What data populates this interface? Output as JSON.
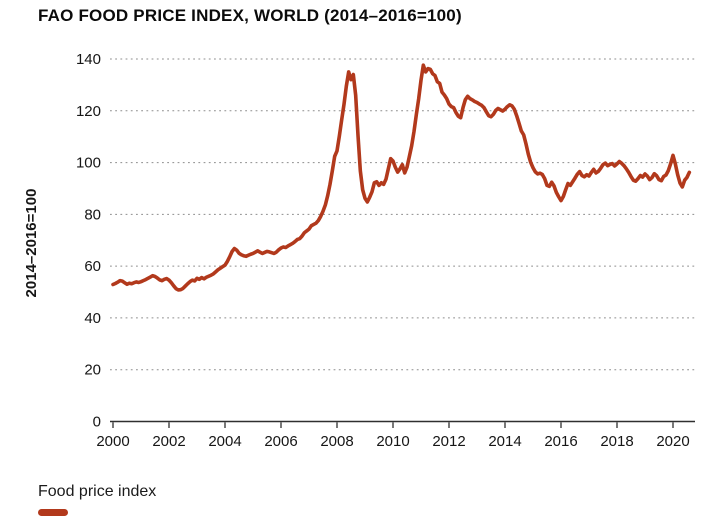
{
  "header": {
    "title": "FAO FOOD PRICE INDEX, WORLD (2014–2016=100)"
  },
  "legend": {
    "label": "Food price index"
  },
  "chart_data": {
    "type": "line",
    "title": "FAO FOOD PRICE INDEX, WORLD (2014–2016=100)",
    "xlabel": "",
    "ylabel": "2014–2016=100",
    "ylim": [
      0,
      140
    ],
    "xlim": [
      2000,
      2020.75
    ],
    "yticks": [
      0,
      20,
      40,
      60,
      80,
      100,
      120,
      140
    ],
    "xticks": [
      2000,
      2002,
      2004,
      2006,
      2008,
      2010,
      2012,
      2014,
      2016,
      2018,
      2020
    ],
    "grid": "horizontal-dotted",
    "legend_position": "bottom-left",
    "line_color": "#b2391c",
    "grid_color": "#8d8d8d",
    "axis_color": "#2f2f2f",
    "text_color": "#161616",
    "series": [
      {
        "name": "Food price index",
        "color": "#b2391c",
        "x_start_year": 2000,
        "x_step_months": 1,
        "values": [
          52.9,
          53.3,
          53.8,
          54.4,
          54.2,
          53.6,
          53.0,
          53.4,
          53.2,
          53.6,
          53.9,
          53.7,
          54.0,
          54.4,
          54.8,
          55.3,
          55.8,
          56.3,
          56.0,
          55.4,
          54.7,
          54.4,
          54.9,
          55.2,
          54.6,
          53.6,
          52.4,
          51.3,
          50.8,
          50.9,
          51.4,
          52.3,
          53.2,
          54.0,
          54.6,
          54.3,
          55.3,
          54.9,
          55.6,
          55.1,
          55.7,
          56.1,
          56.5,
          57.0,
          57.8,
          58.6,
          59.2,
          59.8,
          60.4,
          61.8,
          63.6,
          65.6,
          66.8,
          66.2,
          65.0,
          64.4,
          64.0,
          63.8,
          64.2,
          64.6,
          64.9,
          65.4,
          65.9,
          65.4,
          64.9,
          65.3,
          65.7,
          65.5,
          65.2,
          64.9,
          65.4,
          66.3,
          67.0,
          67.4,
          67.2,
          67.8,
          68.3,
          68.8,
          69.5,
          70.3,
          70.6,
          71.6,
          72.9,
          73.6,
          74.3,
          75.6,
          76.1,
          76.6,
          77.6,
          79.2,
          81.2,
          83.6,
          87.2,
          91.6,
          96.8,
          102.4,
          104.5,
          110.2,
          116.5,
          122.5,
          129.5,
          135.0,
          132.0,
          134.0,
          126.0,
          110.5,
          96.8,
          89.5,
          86.2,
          84.8,
          86.6,
          88.7,
          92.2,
          92.6,
          91.2,
          92.2,
          91.6,
          93.6,
          97.6,
          101.5,
          100.6,
          98.2,
          96.3,
          97.6,
          99.2,
          96.0,
          98.2,
          102.3,
          106.5,
          112.0,
          118.5,
          124.6,
          131.8,
          137.6,
          135.0,
          136.3,
          136.0,
          134.3,
          133.6,
          131.2,
          130.6,
          127.2,
          126.1,
          124.7,
          122.6,
          121.6,
          121.2,
          119.3,
          117.9,
          117.3,
          121.2,
          124.3,
          125.6,
          124.7,
          124.2,
          123.6,
          123.2,
          122.6,
          122.1,
          121.2,
          119.6,
          118.1,
          117.7,
          118.6,
          120.1,
          120.9,
          120.4,
          119.9,
          120.6,
          121.6,
          122.3,
          121.9,
          120.6,
          118.1,
          115.2,
          112.2,
          110.7,
          107.2,
          103.2,
          100.1,
          98.0,
          96.4,
          95.6,
          95.9,
          95.4,
          93.8,
          91.2,
          90.8,
          92.4,
          91.0,
          88.5,
          86.8,
          85.3,
          86.9,
          89.5,
          91.9,
          91.2,
          92.6,
          94.0,
          95.5,
          96.5,
          95.0,
          94.5,
          95.3,
          94.8,
          96.2,
          97.4,
          96.0,
          96.6,
          97.8,
          99.2,
          99.8,
          98.8,
          99.3,
          99.6,
          98.7,
          99.5,
          100.4,
          99.7,
          98.8,
          97.6,
          96.2,
          94.6,
          93.2,
          92.8,
          93.8,
          95.0,
          94.4,
          95.6,
          94.8,
          93.4,
          94.2,
          95.7,
          94.9,
          93.4,
          93.0,
          94.6,
          95.2,
          96.9,
          99.6,
          102.8,
          99.5,
          95.3,
          92.1,
          90.6,
          93.2,
          94.3,
          96.2
        ]
      }
    ]
  }
}
